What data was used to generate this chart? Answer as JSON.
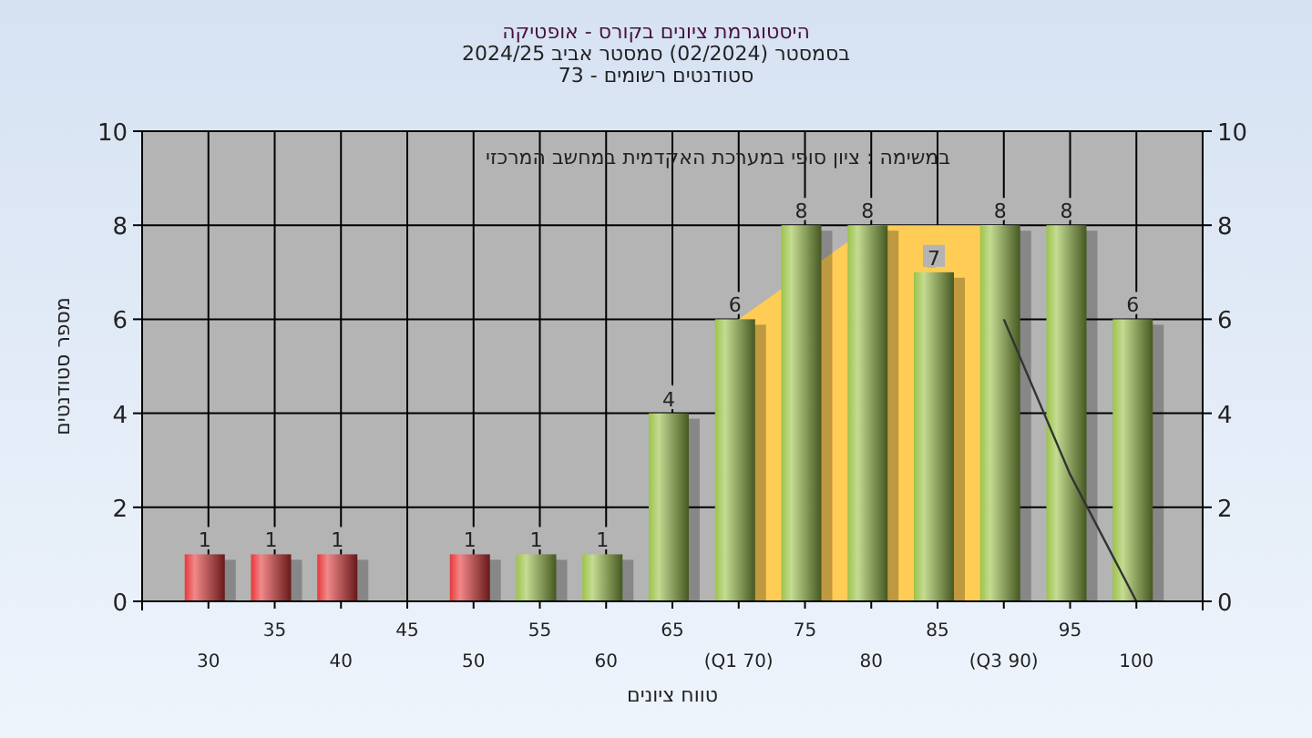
{
  "chart_data": {
    "type": "bar",
    "title": "היסטוגרמת ציונים בקורס - אופטיקה",
    "subtitle": "בסמסטר  (02/2024)  סמסטר אביב 2024/25\nסטודנטים רשומים - 73",
    "xlabel": "טווח ציונים",
    "ylabel": "מספר סטודנטים",
    "annotations": [
      "במשימה : ציון סופי במערכת האקדמית במחשב המרכזי"
    ],
    "categories": [
      "30",
      "35",
      "40",
      "45",
      "50",
      "55",
      "60",
      "65",
      "(Q1 70)",
      "75",
      "80",
      "85",
      "(Q3 90)",
      "95",
      "100"
    ],
    "series": [
      {
        "type": "area",
        "color": "#ffcc55",
        "values": [
          null,
          null,
          null,
          null,
          null,
          null,
          null,
          null,
          6,
          null,
          8,
          8,
          8,
          null,
          null
        ]
      },
      {
        "type": "line",
        "color": "#333333",
        "values": [
          null,
          null,
          null,
          null,
          null,
          null,
          null,
          null,
          null,
          null,
          null,
          null,
          6,
          2.7,
          0
        ]
      },
      {
        "values": [
          1,
          1,
          1,
          0,
          1,
          1,
          1,
          4,
          6,
          8,
          8,
          7,
          8,
          8,
          6
        ],
        "value_labels": [
          "1",
          "1",
          "1",
          null,
          "1",
          "1",
          "1",
          "4",
          "6",
          "8",
          "8",
          "7",
          "8",
          "8",
          "6"
        ],
        "colors": [
          "#e8383a",
          "#e8383a",
          "#e8383a",
          "#e8383a",
          "#e8383a",
          "#9cc34a",
          "#9cc34a",
          "#9cc34a",
          "#9cc34a",
          "#9cc34a",
          "#9cc34a",
          "#9cc34a",
          "#9cc34a",
          "#9cc34a",
          "#9cc34a"
        ]
      }
    ],
    "ylim": [
      0,
      10
    ],
    "yticks": [
      0,
      2,
      4,
      6,
      8,
      10
    ],
    "y2lim": [
      0,
      10
    ],
    "y2ticks": [
      0,
      2,
      4,
      6,
      8,
      10
    ],
    "grid": true
  }
}
